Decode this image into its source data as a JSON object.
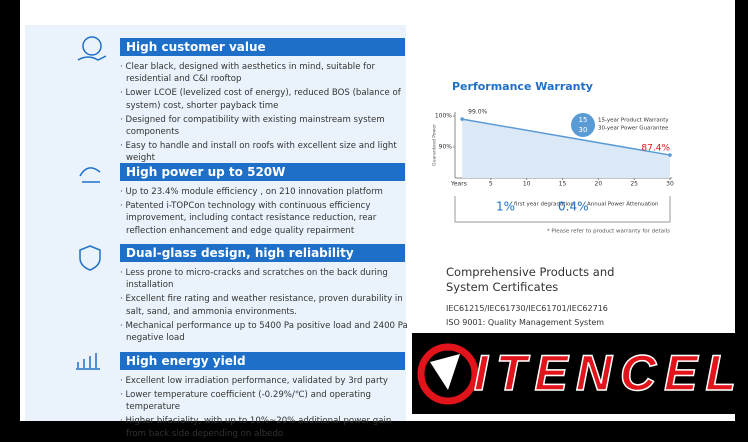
{
  "sections": [
    {
      "title": "High customer value",
      "bullets": [
        "Clear black, designed with aesthetics in mind, suitable for residential and C&I rooftop",
        "Lower LCOE (levelized cost of energy), reduced BOS (balance of system) cost, shorter payback time",
        "Designed for compatibility with existing mainstream system components",
        "Easy to handle and install on roofs with excellent size and light weight"
      ]
    },
    {
      "title": "High power up to 520W",
      "bullets": [
        "Up to 23.4% module efficiency , on 210 innovation platform",
        "Patented i-TOPCon technology with continuous efficiency improvement, including contact resistance reduction, rear reflection enhancement and edge quality repairment"
      ]
    },
    {
      "title": "Dual-glass design, high reliability",
      "bullets": [
        "Less prone to micro-cracks and scratches on the back during installation",
        "Excellent fire rating and weather resistance, proven durability in salt, sand, and ammonia environments.",
        "Mechanical performance up to 5400 Pa positive load and 2400 Pa negative load"
      ]
    },
    {
      "title": "High energy yield",
      "bullets": [
        "Excellent low irradiation performance, validated by 3rd party",
        "Lower temperature coefficient (-0.29%/℃) and operating temperature",
        "Higher bifaciality, with up to 10%~20% additional power gain from back side depending on albedo"
      ]
    }
  ],
  "warranty": {
    "type": "line",
    "title": "Performance Warranty",
    "y_label": "Guaranteed Power",
    "x_label": "Years",
    "x": [
      1,
      30
    ],
    "values": [
      99.0,
      87.4
    ],
    "value_labels": [
      "99.0%",
      "87.4%"
    ],
    "color": "#5b9bd5",
    "xlim": [
      0,
      30
    ],
    "xticks": [
      5,
      10,
      15,
      20,
      25,
      30
    ],
    "ylim": [
      80,
      100
    ],
    "yticks": [
      {
        "value": 100,
        "label": "100%"
      },
      {
        "value": 90,
        "label": "90%"
      }
    ],
    "badge": [
      "15",
      "30"
    ],
    "badge_text": [
      "15-year Product Warranty",
      "30-year Power Guarantee"
    ],
    "stats": [
      {
        "value": "1%",
        "label": "first year degradation"
      },
      {
        "value": "0.4%",
        "label": "Annual Power Attenuation"
      }
    ],
    "note": "* Please refer to product warranty for details"
  },
  "certificates": {
    "title": "Comprehensive Products and System Certificates",
    "items": [
      "IEC61215/IEC61730/IEC61701/IEC62716",
      "ISO 9001: Quality Management System"
    ]
  },
  "logo": "ITENCEL"
}
